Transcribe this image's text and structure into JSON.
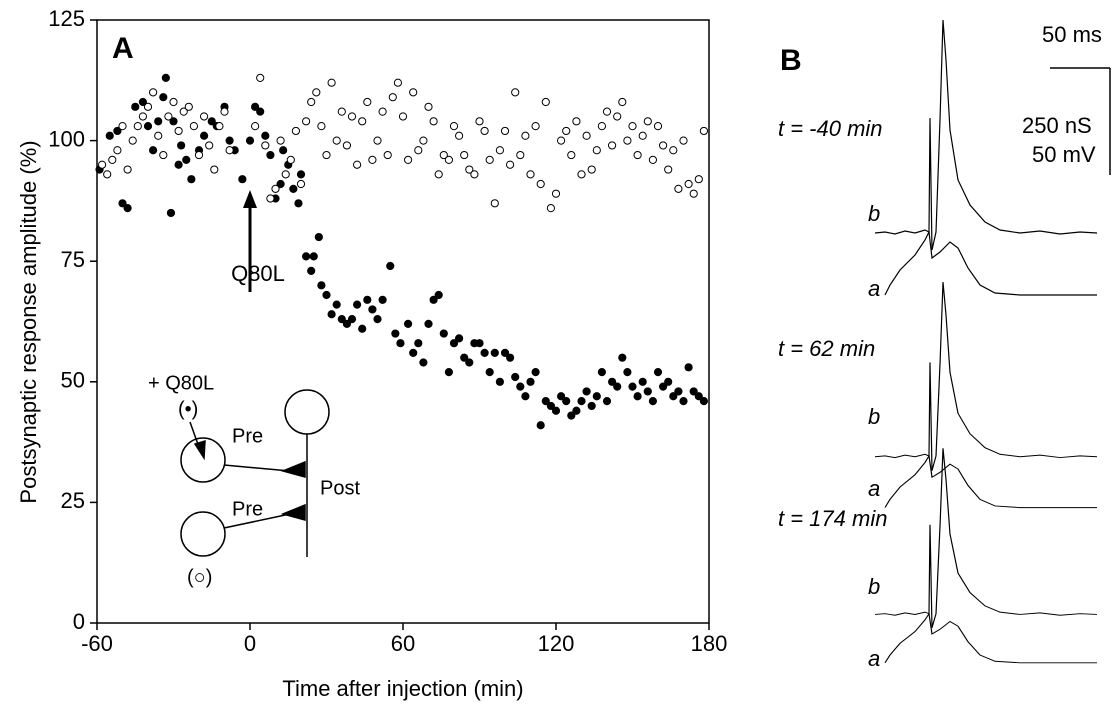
{
  "chart_data": {
    "type": "scatter",
    "panel_a_label": "A",
    "panel_b_label": "B",
    "xlabel": "Time after injection (min)",
    "ylabel": "Postsynaptic response amplitude (%)",
    "xlim": [
      -60,
      180
    ],
    "xticks": [
      -60,
      0,
      60,
      120,
      180
    ],
    "ylim": [
      0,
      125
    ],
    "yticks": [
      0,
      25,
      50,
      75,
      100,
      125
    ],
    "annotation": {
      "text": "Q80L",
      "x": 0
    },
    "inset": {
      "injected": "+ Q80L",
      "filled_symbol": "(•)",
      "open_symbol": "(○)",
      "pre1": "Pre",
      "pre2": "Pre",
      "post": "Post"
    },
    "traces": {
      "scale_time": "50 ms",
      "scale_conductance": "250 nS",
      "scale_voltage": "50 mV",
      "times": [
        "t = -40 min",
        "t = 62 min",
        "t = 174 min"
      ],
      "trace_b": "b",
      "trace_a": "a"
    },
    "series": [
      {
        "color": "#000000",
        "fill": "#000000",
        "x": [
          -59,
          -55,
          -52,
          -50,
          -48,
          -45,
          -42,
          -40,
          -38,
          -36,
          -34,
          -33,
          -31,
          -30,
          -28,
          -27,
          -25,
          -23,
          -20,
          -18,
          -15,
          -13,
          -10,
          -8,
          -6,
          -3,
          0,
          2,
          4,
          6,
          8,
          10,
          12,
          13,
          15,
          17,
          19,
          20,
          22,
          24,
          25,
          27,
          28,
          30,
          32,
          34,
          36,
          38,
          40,
          42,
          44,
          46,
          48,
          50,
          52,
          55,
          57,
          59,
          62,
          64,
          66,
          68,
          70,
          72,
          74,
          76,
          78,
          80,
          82,
          84,
          86,
          88,
          90,
          92,
          94,
          96,
          98,
          100,
          102,
          104,
          106,
          108,
          110,
          112,
          114,
          116,
          118,
          120,
          122,
          124,
          126,
          128,
          130,
          132,
          134,
          136,
          138,
          140,
          142,
          144,
          146,
          148,
          150,
          152,
          154,
          156,
          158,
          160,
          162,
          164,
          166,
          168,
          170,
          172,
          174,
          176,
          178
        ],
        "values": [
          94,
          101,
          102,
          87,
          86,
          107,
          108,
          103,
          98,
          104,
          109,
          113,
          85,
          104,
          95,
          99,
          96,
          92,
          98,
          101,
          104,
          103,
          107,
          100,
          98,
          92,
          100,
          107,
          106,
          101,
          97,
          88,
          91,
          98,
          95,
          90,
          87,
          93,
          76,
          73,
          76,
          80,
          70,
          68,
          64,
          66,
          63,
          62,
          63,
          66,
          61,
          67,
          65,
          63,
          67,
          74,
          60,
          58,
          62,
          56,
          58,
          54,
          62,
          67,
          68,
          60,
          52,
          58,
          59,
          55,
          54,
          58,
          58,
          56,
          52,
          56,
          50,
          56,
          55,
          51,
          49,
          47,
          50,
          52,
          41,
          46,
          45,
          44,
          47,
          46,
          43,
          44,
          46,
          48,
          45,
          47,
          52,
          46,
          50,
          49,
          55,
          52,
          49,
          47,
          50,
          48,
          46,
          52,
          49,
          50,
          47,
          48,
          46,
          53,
          48,
          47,
          46
        ]
      },
      {
        "color": "#000000",
        "fill": "#ffffff",
        "x": [
          -58,
          -56,
          -54,
          -52,
          -50,
          -48,
          -46,
          -44,
          -42,
          -40,
          -38,
          -36,
          -34,
          -32,
          -30,
          -28,
          -26,
          -24,
          -22,
          -20,
          -18,
          -16,
          -14,
          -12,
          -10,
          -8,
          2,
          4,
          6,
          8,
          10,
          12,
          14,
          16,
          18,
          20,
          22,
          24,
          26,
          28,
          30,
          32,
          34,
          36,
          38,
          40,
          42,
          44,
          46,
          48,
          50,
          52,
          54,
          56,
          58,
          60,
          62,
          64,
          66,
          68,
          70,
          72,
          74,
          76,
          78,
          80,
          82,
          84,
          86,
          88,
          90,
          92,
          94,
          96,
          98,
          100,
          102,
          104,
          106,
          108,
          110,
          112,
          114,
          116,
          118,
          120,
          122,
          124,
          126,
          128,
          130,
          132,
          134,
          136,
          138,
          140,
          142,
          144,
          146,
          148,
          150,
          152,
          154,
          156,
          158,
          160,
          162,
          164,
          166,
          168,
          170,
          172,
          174,
          176,
          178
        ],
        "values": [
          95,
          93,
          96,
          98,
          103,
          94,
          100,
          103,
          105,
          107,
          110,
          101,
          97,
          105,
          108,
          102,
          106,
          107,
          103,
          97,
          105,
          99,
          94,
          103,
          106,
          98,
          103,
          113,
          99,
          88,
          90,
          100,
          93,
          96,
          102,
          91,
          104,
          108,
          110,
          103,
          97,
          112,
          100,
          106,
          99,
          105,
          95,
          104,
          108,
          96,
          100,
          106,
          97,
          109,
          112,
          105,
          96,
          110,
          98,
          100,
          107,
          104,
          93,
          97,
          96,
          103,
          101,
          97,
          94,
          93,
          104,
          102,
          96,
          87,
          98,
          102,
          95,
          110,
          97,
          101,
          93,
          103,
          91,
          108,
          86,
          89,
          100,
          102,
          97,
          104,
          93,
          101,
          94,
          98,
          103,
          106,
          99,
          105,
          108,
          100,
          103,
          97,
          101,
          104,
          96,
          103,
          99,
          94,
          98,
          90,
          100,
          91,
          89,
          92,
          102
        ]
      }
    ]
  }
}
